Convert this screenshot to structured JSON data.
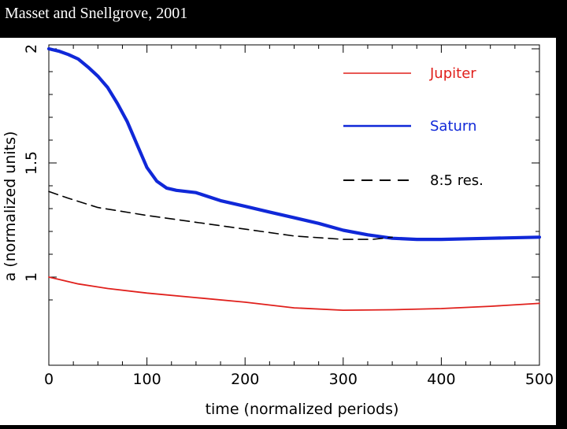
{
  "header": {
    "title": "Masset and Snellgrove, 2001"
  },
  "chart_data": {
    "type": "line",
    "xlabel": "time (normalized periods)",
    "ylabel": "a (normalized units)",
    "xlim": [
      0,
      500
    ],
    "ylim": [
      0.85,
      2.0
    ],
    "x_ticks": [
      0,
      100,
      200,
      300,
      400,
      500
    ],
    "x_tick_labels": [
      "0",
      "100",
      "200",
      "300",
      "400",
      "500"
    ],
    "y_ticks": [
      1.0,
      1.5,
      2.0
    ],
    "y_tick_labels": [
      "1",
      "1.5",
      "2"
    ],
    "grid": false,
    "legend_position": "top-right",
    "series": [
      {
        "name": "Jupiter",
        "color": "#e0201c",
        "style": "solid",
        "x": [
          0,
          10,
          30,
          60,
          100,
          150,
          200,
          250,
          300,
          350,
          400,
          450,
          500
        ],
        "y": [
          1.0,
          0.99,
          0.97,
          0.95,
          0.93,
          0.91,
          0.89,
          0.865,
          0.855,
          0.857,
          0.862,
          0.872,
          0.885
        ]
      },
      {
        "name": "Saturn",
        "color": "#1028d8",
        "style": "solid-thick",
        "x": [
          0,
          10,
          20,
          30,
          40,
          50,
          60,
          70,
          80,
          90,
          100,
          110,
          120,
          130,
          150,
          175,
          200,
          225,
          250,
          275,
          300,
          325,
          350,
          375,
          400,
          450,
          500
        ],
        "y": [
          2.0,
          1.99,
          1.975,
          1.955,
          1.92,
          1.88,
          1.83,
          1.76,
          1.68,
          1.58,
          1.48,
          1.42,
          1.39,
          1.38,
          1.37,
          1.335,
          1.31,
          1.285,
          1.26,
          1.235,
          1.205,
          1.185,
          1.17,
          1.165,
          1.165,
          1.17,
          1.175
        ]
      },
      {
        "name": "8:5 res.",
        "color": "#000000",
        "style": "dashed",
        "x": [
          0,
          20,
          50,
          100,
          150,
          200,
          250,
          300,
          330,
          350
        ],
        "y": [
          1.375,
          1.345,
          1.305,
          1.27,
          1.24,
          1.21,
          1.18,
          1.165,
          1.165,
          1.175
        ]
      }
    ]
  }
}
